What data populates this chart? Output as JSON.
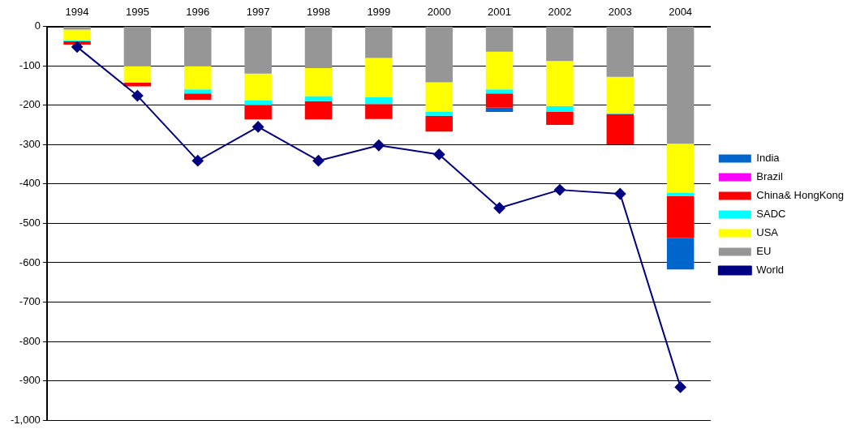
{
  "chart_data": {
    "type": "bar",
    "stacked": true,
    "categories": [
      "1994",
      "1995",
      "1996",
      "1997",
      "1998",
      "1999",
      "2000",
      "2001",
      "2002",
      "2003",
      "2004"
    ],
    "series": [
      {
        "name": "EU",
        "color": "#969696",
        "values": [
          -8,
          -100,
          -100,
          -120,
          -106,
          -80,
          -142,
          -64,
          -88,
          -128,
          -298
        ]
      },
      {
        "name": "USA",
        "color": "#ffff00",
        "values": [
          -28,
          -43,
          -60,
          -68,
          -71,
          -100,
          -75,
          -96,
          -114,
          -92,
          -125
        ]
      },
      {
        "name": "SADC",
        "color": "#00ffff",
        "values": [
          -2,
          0,
          -10,
          -12,
          -13,
          -17,
          -10,
          -10,
          -15,
          -2,
          -8
        ]
      },
      {
        "name": "China& HongKong",
        "color": "#ff0000",
        "values": [
          -8,
          -9,
          -16,
          -36,
          -46,
          -38,
          -40,
          -36,
          -33,
          -78,
          -106
        ]
      },
      {
        "name": "Brazil",
        "color": "#ff00ff",
        "values": [
          0,
          0,
          0,
          0,
          0,
          0,
          0,
          0,
          0,
          0,
          0
        ]
      },
      {
        "name": "India",
        "color": "#0066cc",
        "values": [
          0,
          0,
          0,
          0,
          0,
          0,
          0,
          -11,
          0,
          0,
          -80
        ]
      },
      {
        "name": "World",
        "type": "line",
        "color": "#000080",
        "values": [
          -52,
          -176,
          -341,
          -255,
          -341,
          -302,
          -325,
          -461,
          -415,
          -425,
          -916
        ]
      }
    ],
    "ylim": [
      -1000,
      0
    ],
    "yticks": [
      {
        "value": -1000,
        "label": "-1,000"
      },
      -900,
      -800,
      -700,
      -600,
      -500,
      -400,
      -300,
      -200,
      -100,
      0
    ],
    "grid": "y",
    "legend": "right",
    "marker": "diamond",
    "line_style": "solid"
  }
}
